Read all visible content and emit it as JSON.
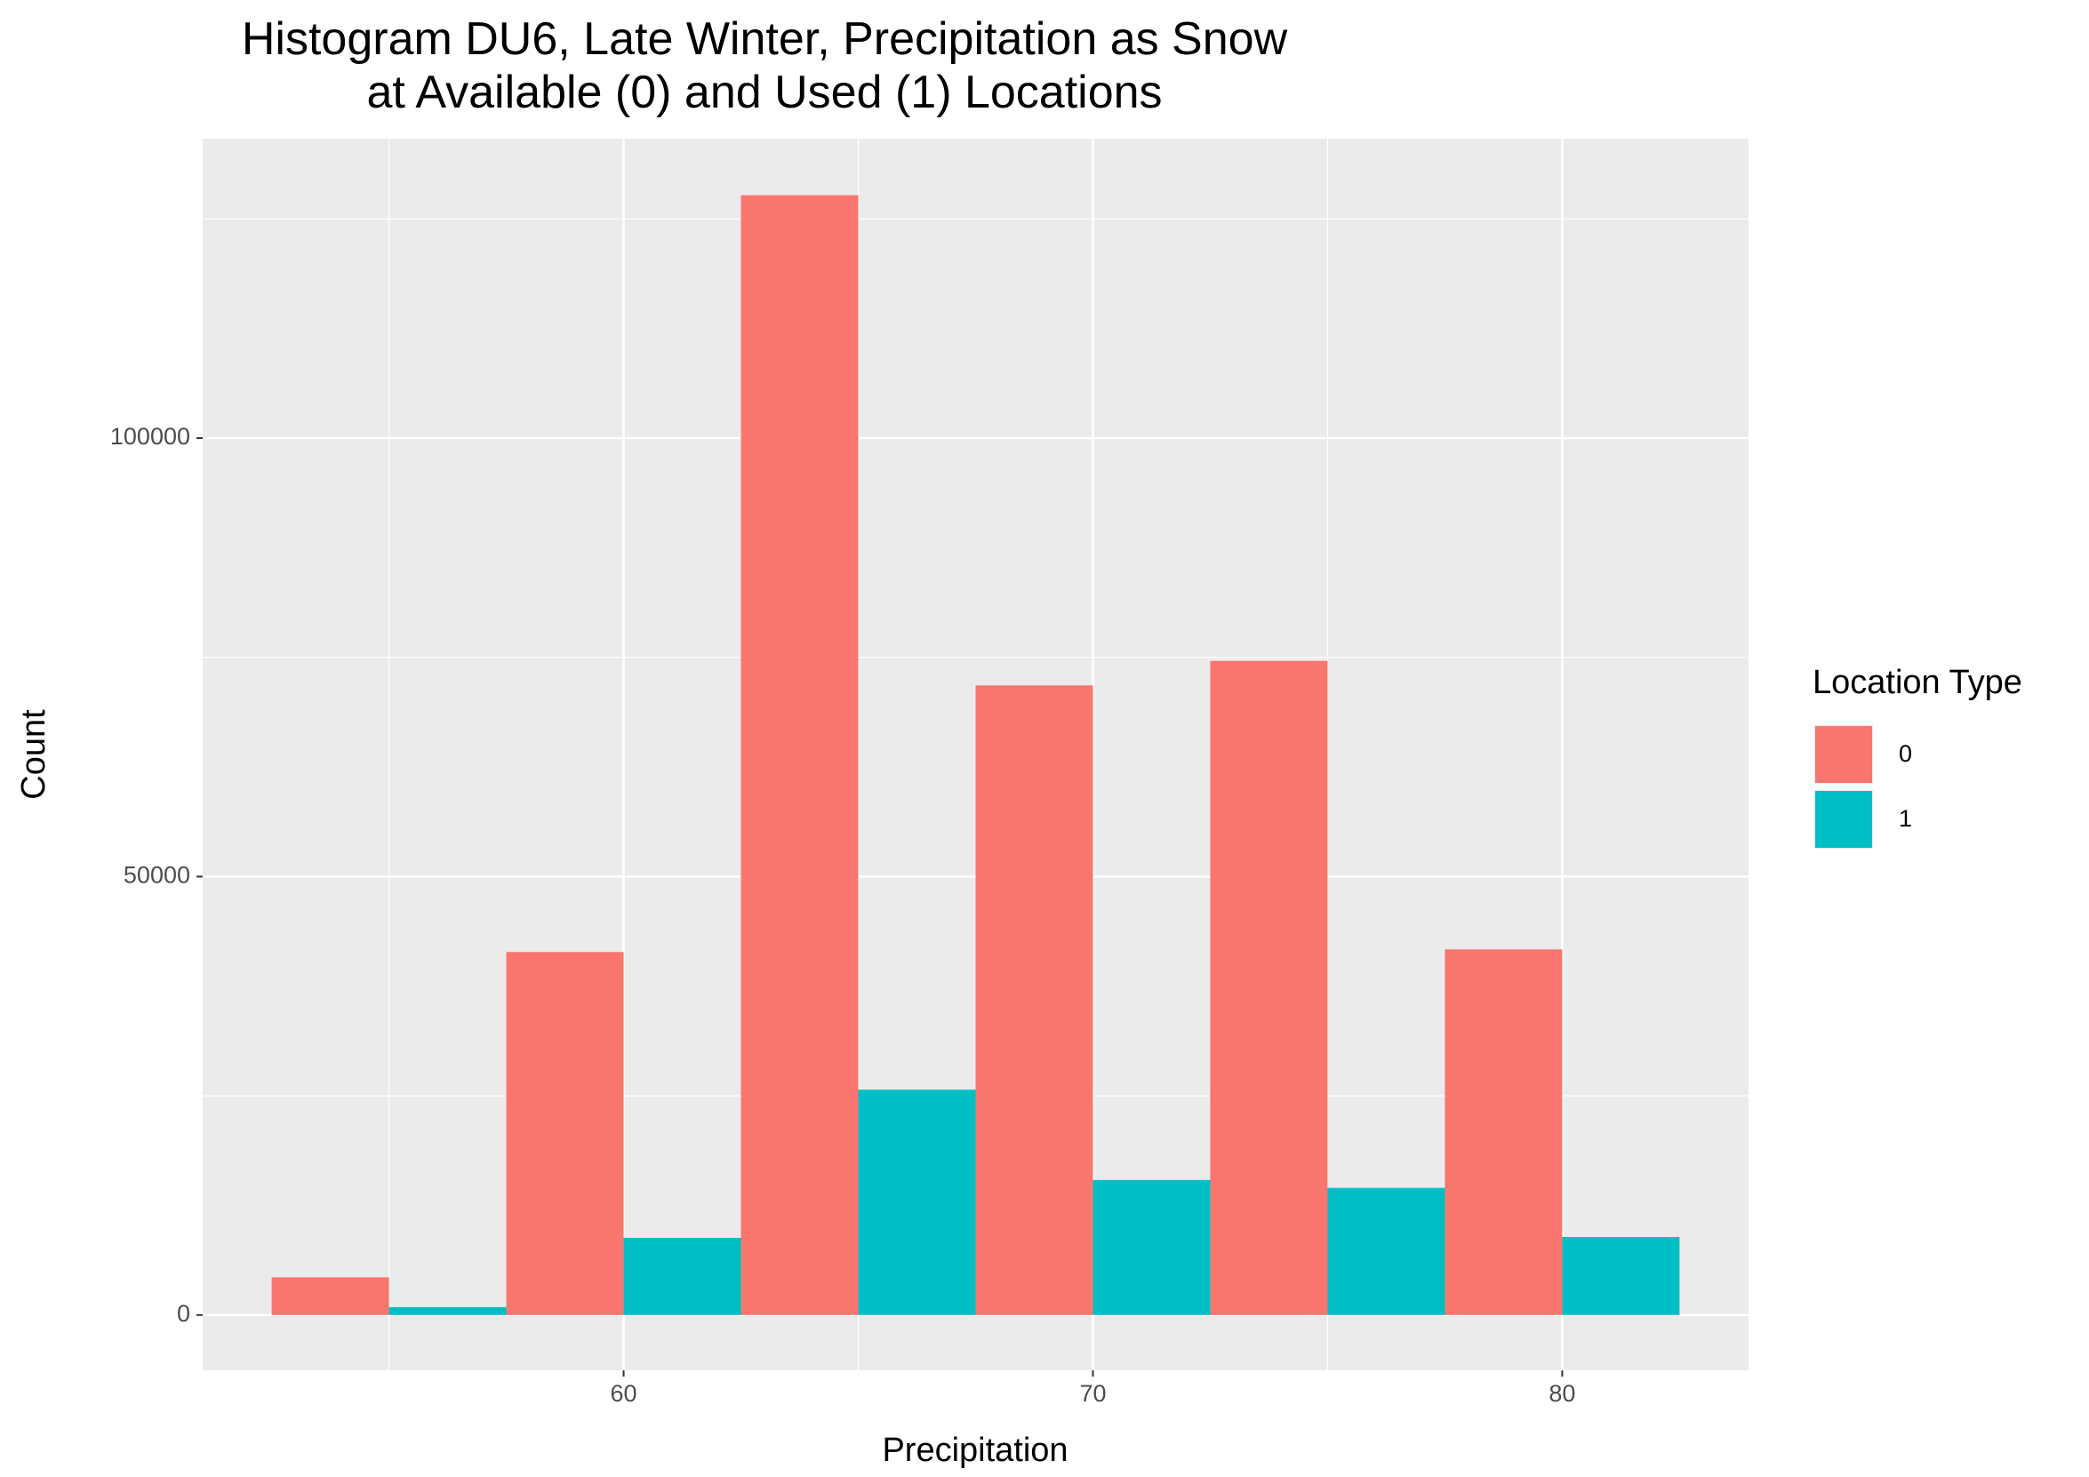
{
  "chart_data": {
    "type": "histogram",
    "title": "Histogram DU6, Late Winter, Precipitation as Snow\nat Available (0) and Used (1) Locations",
    "x_label": "Precipitation",
    "y_label": "Count",
    "legend_title": "Location Type",
    "legend": "right",
    "bins": [
      52.5,
      57.5,
      62.5,
      67.5,
      72.5,
      77.5,
      82.5
    ],
    "series": [
      {
        "name": "0",
        "color": "#F8766D",
        "values": [
          4300,
          41400,
          127700,
          71800,
          74600,
          41700
        ]
      },
      {
        "name": "1",
        "color": "#00BFC4",
        "values": [
          900,
          8800,
          25700,
          15400,
          14500,
          8900
        ]
      }
    ],
    "xlim": [
      51.03,
      83.97
    ],
    "xticks": [
      60,
      70,
      80
    ],
    "ylim": [
      -6308,
      134154
    ],
    "yticks": [
      0,
      50000,
      100000
    ],
    "grid": true
  }
}
